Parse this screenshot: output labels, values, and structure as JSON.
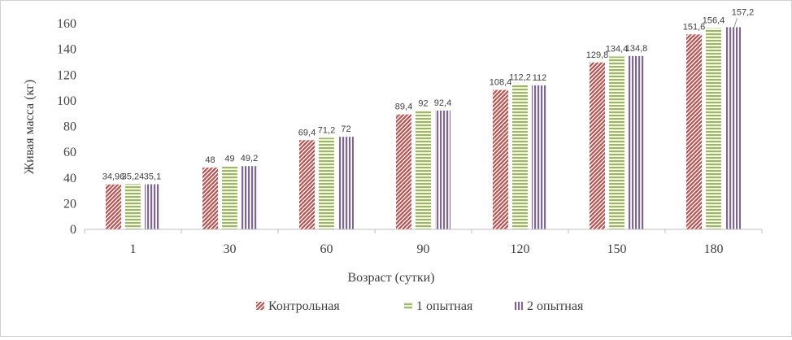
{
  "chart_data": {
    "type": "bar",
    "title": "",
    "xlabel": "Возраст (сутки)",
    "ylabel": "Живая масса (кг)",
    "categories": [
      "1",
      "30",
      "60",
      "90",
      "120",
      "150",
      "180"
    ],
    "ylim": [
      0,
      160
    ],
    "yticks": [
      "0",
      "20",
      "40",
      "60",
      "80",
      "100",
      "120",
      "140",
      "160"
    ],
    "grid": false,
    "legend_position": "bottom",
    "series": [
      {
        "name": "Контрольная",
        "values": [
          34.96,
          48,
          69.4,
          89.4,
          108.4,
          129.8,
          151.6
        ],
        "labels": [
          "34,96",
          "48",
          "69,4",
          "89,4",
          "108,4",
          "129,8",
          "151,6"
        ],
        "color": "#c0504d",
        "pattern": "diagonal-hatch"
      },
      {
        "name": "1 опытная",
        "values": [
          35.24,
          49,
          71.2,
          92,
          112.2,
          134.4,
          156.4
        ],
        "labels": [
          "35,24",
          "49",
          "71,2",
          "92",
          "112,2",
          "134,4",
          "156,4"
        ],
        "color": "#9bbb59",
        "pattern": "horizontal-stripes"
      },
      {
        "name": "2 опытная",
        "values": [
          35.1,
          49.2,
          72,
          92.4,
          112,
          134.8,
          157.2
        ],
        "labels": [
          "35,1",
          "49,2",
          "72",
          "92,4",
          "112",
          "134,8",
          "157,2"
        ],
        "color": "#8064a2",
        "pattern": "vertical-stripes"
      }
    ]
  }
}
